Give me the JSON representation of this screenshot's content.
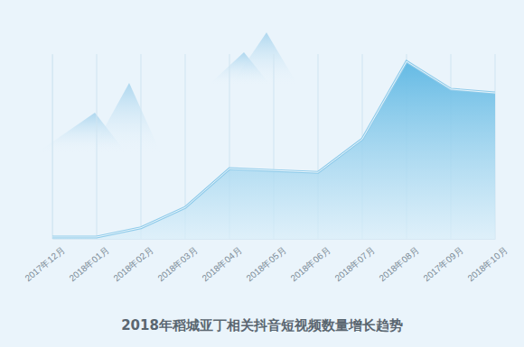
{
  "chart_data": {
    "type": "area",
    "title": "2018年稻城亚丁相关抖音短视频数量增长趋势",
    "categories": [
      "2017年12月",
      "2018年01月",
      "2018年02月",
      "2018年03月",
      "2018年04月",
      "2018年05月",
      "2018年06月",
      "2018年07月",
      "2018年08月",
      "2017年09月",
      "2018年10月"
    ],
    "values": [
      1,
      1,
      6,
      17,
      38,
      37,
      36,
      54,
      96,
      81,
      79
    ],
    "color": "#8fcbea",
    "ylim": [
      0,
      100
    ],
    "yticks": [],
    "grid": true,
    "tick_labels": "x"
  }
}
